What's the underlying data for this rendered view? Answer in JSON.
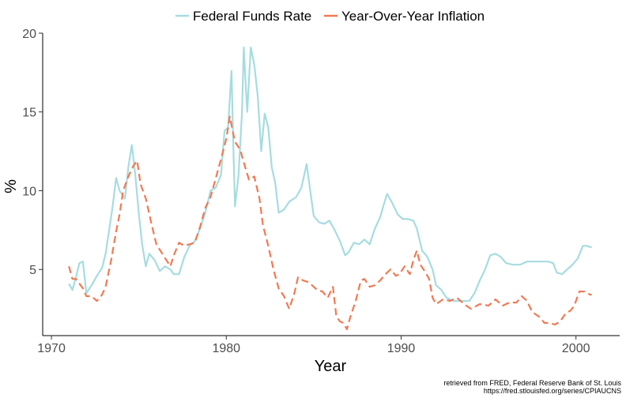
{
  "chart_data": {
    "type": "line",
    "xlabel": "Year",
    "ylabel": "%",
    "xlim": [
      1969.5,
      2002.5
    ],
    "ylim": [
      0.8,
      20.0
    ],
    "xticks": [
      1970,
      1980,
      1990,
      2000
    ],
    "yticks": [
      5,
      10,
      15,
      20
    ],
    "legend_position": "top",
    "grid": false,
    "series": [
      {
        "name": "Federal Funds Rate",
        "color": "#a6dce0",
        "style": "solid",
        "points": [
          [
            1971.0,
            4.1
          ],
          [
            1971.2,
            3.7
          ],
          [
            1971.4,
            4.5
          ],
          [
            1971.6,
            5.4
          ],
          [
            1971.8,
            5.5
          ],
          [
            1972.0,
            3.5
          ],
          [
            1972.3,
            4.0
          ],
          [
            1972.6,
            4.6
          ],
          [
            1972.9,
            5.1
          ],
          [
            1973.1,
            6.0
          ],
          [
            1973.3,
            7.5
          ],
          [
            1973.5,
            9.0
          ],
          [
            1973.7,
            10.8
          ],
          [
            1973.9,
            10.0
          ],
          [
            1974.2,
            9.5
          ],
          [
            1974.4,
            11.5
          ],
          [
            1974.6,
            12.9
          ],
          [
            1974.8,
            11.0
          ],
          [
            1975.0,
            8.5
          ],
          [
            1975.2,
            6.5
          ],
          [
            1975.4,
            5.2
          ],
          [
            1975.6,
            6.0
          ],
          [
            1975.9,
            5.6
          ],
          [
            1976.2,
            4.9
          ],
          [
            1976.5,
            5.2
          ],
          [
            1976.8,
            5.0
          ],
          [
            1977.0,
            4.7
          ],
          [
            1977.3,
            4.7
          ],
          [
            1977.6,
            5.8
          ],
          [
            1977.9,
            6.5
          ],
          [
            1978.2,
            6.8
          ],
          [
            1978.5,
            7.6
          ],
          [
            1978.8,
            8.6
          ],
          [
            1979.1,
            10.0
          ],
          [
            1979.4,
            10.2
          ],
          [
            1979.7,
            11.0
          ],
          [
            1979.9,
            13.8
          ],
          [
            1980.1,
            14.0
          ],
          [
            1980.3,
            17.6
          ],
          [
            1980.4,
            13.0
          ],
          [
            1980.5,
            9.0
          ],
          [
            1980.7,
            11.0
          ],
          [
            1980.9,
            15.0
          ],
          [
            1981.0,
            19.1
          ],
          [
            1981.1,
            17.0
          ],
          [
            1981.2,
            15.0
          ],
          [
            1981.4,
            19.1
          ],
          [
            1981.6,
            18.0
          ],
          [
            1981.8,
            16.0
          ],
          [
            1982.0,
            12.5
          ],
          [
            1982.2,
            14.9
          ],
          [
            1982.4,
            14.0
          ],
          [
            1982.6,
            11.5
          ],
          [
            1982.8,
            10.5
          ],
          [
            1983.0,
            8.6
          ],
          [
            1983.3,
            8.8
          ],
          [
            1983.6,
            9.3
          ],
          [
            1984.0,
            9.6
          ],
          [
            1984.3,
            10.2
          ],
          [
            1984.6,
            11.7
          ],
          [
            1984.8,
            10.0
          ],
          [
            1985.0,
            8.4
          ],
          [
            1985.3,
            8.0
          ],
          [
            1985.6,
            7.9
          ],
          [
            1985.9,
            8.1
          ],
          [
            1986.2,
            7.5
          ],
          [
            1986.5,
            6.8
          ],
          [
            1986.8,
            5.9
          ],
          [
            1987.0,
            6.1
          ],
          [
            1987.3,
            6.7
          ],
          [
            1987.6,
            6.6
          ],
          [
            1987.9,
            6.9
          ],
          [
            1988.2,
            6.6
          ],
          [
            1988.5,
            7.6
          ],
          [
            1988.8,
            8.3
          ],
          [
            1989.0,
            9.1
          ],
          [
            1989.2,
            9.8
          ],
          [
            1989.5,
            9.2
          ],
          [
            1989.8,
            8.5
          ],
          [
            1990.1,
            8.2
          ],
          [
            1990.4,
            8.2
          ],
          [
            1990.7,
            8.1
          ],
          [
            1990.9,
            7.6
          ],
          [
            1991.2,
            6.2
          ],
          [
            1991.5,
            5.8
          ],
          [
            1991.8,
            5.0
          ],
          [
            1992.0,
            4.0
          ],
          [
            1992.3,
            3.7
          ],
          [
            1992.6,
            3.2
          ],
          [
            1993.0,
            3.0
          ],
          [
            1993.5,
            3.0
          ],
          [
            1993.9,
            3.0
          ],
          [
            1994.2,
            3.5
          ],
          [
            1994.5,
            4.3
          ],
          [
            1994.8,
            5.0
          ],
          [
            1995.1,
            5.9
          ],
          [
            1995.4,
            6.0
          ],
          [
            1995.7,
            5.8
          ],
          [
            1996.0,
            5.4
          ],
          [
            1996.4,
            5.3
          ],
          [
            1996.8,
            5.3
          ],
          [
            1997.2,
            5.5
          ],
          [
            1997.6,
            5.5
          ],
          [
            1998.0,
            5.5
          ],
          [
            1998.4,
            5.5
          ],
          [
            1998.7,
            5.4
          ],
          [
            1998.9,
            4.8
          ],
          [
            1999.2,
            4.7
          ],
          [
            1999.5,
            5.0
          ],
          [
            1999.8,
            5.3
          ],
          [
            2000.1,
            5.7
          ],
          [
            2000.4,
            6.5
          ],
          [
            2000.6,
            6.5
          ],
          [
            2000.9,
            6.4
          ]
        ]
      },
      {
        "name": "Year-Over-Year Inflation",
        "color": "#f07a54",
        "style": "dashed",
        "points": [
          [
            1971.0,
            5.2
          ],
          [
            1971.2,
            4.4
          ],
          [
            1971.4,
            4.4
          ],
          [
            1971.6,
            4.1
          ],
          [
            1971.8,
            3.8
          ],
          [
            1972.0,
            3.3
          ],
          [
            1972.3,
            3.3
          ],
          [
            1972.6,
            3.0
          ],
          [
            1972.9,
            3.4
          ],
          [
            1973.1,
            3.9
          ],
          [
            1973.4,
            5.5
          ],
          [
            1973.7,
            7.4
          ],
          [
            1973.9,
            8.5
          ],
          [
            1974.1,
            10.0
          ],
          [
            1974.4,
            10.9
          ],
          [
            1974.7,
            11.6
          ],
          [
            1974.9,
            11.9
          ],
          [
            1975.1,
            10.4
          ],
          [
            1975.4,
            9.5
          ],
          [
            1975.7,
            8.0
          ],
          [
            1976.0,
            6.6
          ],
          [
            1976.4,
            5.9
          ],
          [
            1976.8,
            5.2
          ],
          [
            1977.0,
            5.9
          ],
          [
            1977.3,
            6.7
          ],
          [
            1977.6,
            6.5
          ],
          [
            1977.9,
            6.6
          ],
          [
            1978.2,
            6.7
          ],
          [
            1978.5,
            7.7
          ],
          [
            1978.8,
            8.9
          ],
          [
            1979.1,
            9.6
          ],
          [
            1979.4,
            10.8
          ],
          [
            1979.7,
            12.0
          ],
          [
            1980.0,
            13.3
          ],
          [
            1980.2,
            14.7
          ],
          [
            1980.5,
            13.1
          ],
          [
            1980.8,
            12.6
          ],
          [
            1981.0,
            11.8
          ],
          [
            1981.3,
            10.7
          ],
          [
            1981.6,
            10.9
          ],
          [
            1981.9,
            9.5
          ],
          [
            1982.1,
            7.8
          ],
          [
            1982.4,
            6.5
          ],
          [
            1982.7,
            5.0
          ],
          [
            1983.0,
            3.8
          ],
          [
            1983.3,
            3.3
          ],
          [
            1983.6,
            2.5
          ],
          [
            1983.9,
            3.5
          ],
          [
            1984.1,
            4.5
          ],
          [
            1984.4,
            4.3
          ],
          [
            1984.7,
            4.2
          ],
          [
            1984.9,
            4.0
          ],
          [
            1985.2,
            3.7
          ],
          [
            1985.5,
            3.6
          ],
          [
            1985.8,
            3.2
          ],
          [
            1986.1,
            3.9
          ],
          [
            1986.3,
            2.0
          ],
          [
            1986.5,
            1.7
          ],
          [
            1986.7,
            1.6
          ],
          [
            1986.9,
            1.2
          ],
          [
            1987.1,
            2.0
          ],
          [
            1987.4,
            3.0
          ],
          [
            1987.7,
            4.3
          ],
          [
            1987.9,
            4.4
          ],
          [
            1988.2,
            3.9
          ],
          [
            1988.5,
            4.0
          ],
          [
            1988.8,
            4.3
          ],
          [
            1989.1,
            4.7
          ],
          [
            1989.4,
            5.0
          ],
          [
            1989.7,
            4.6
          ],
          [
            1989.9,
            4.7
          ],
          [
            1990.2,
            5.2
          ],
          [
            1990.5,
            4.7
          ],
          [
            1990.7,
            5.6
          ],
          [
            1990.9,
            6.2
          ],
          [
            1991.1,
            5.3
          ],
          [
            1991.4,
            4.8
          ],
          [
            1991.6,
            4.4
          ],
          [
            1991.8,
            3.2
          ],
          [
            1992.0,
            2.8
          ],
          [
            1992.4,
            3.1
          ],
          [
            1992.8,
            3.0
          ],
          [
            1993.2,
            3.2
          ],
          [
            1993.6,
            2.8
          ],
          [
            1994.0,
            2.5
          ],
          [
            1994.5,
            2.8
          ],
          [
            1995.0,
            2.7
          ],
          [
            1995.4,
            3.1
          ],
          [
            1995.8,
            2.7
          ],
          [
            1996.2,
            2.9
          ],
          [
            1996.6,
            2.9
          ],
          [
            1996.9,
            3.3
          ],
          [
            1997.2,
            3.0
          ],
          [
            1997.5,
            2.3
          ],
          [
            1997.9,
            2.0
          ],
          [
            1998.2,
            1.6
          ],
          [
            1998.5,
            1.6
          ],
          [
            1998.8,
            1.5
          ],
          [
            1999.1,
            1.7
          ],
          [
            1999.4,
            2.2
          ],
          [
            1999.7,
            2.4
          ],
          [
            1999.9,
            2.7
          ],
          [
            2000.2,
            3.6
          ],
          [
            2000.5,
            3.6
          ],
          [
            2000.8,
            3.4
          ],
          [
            2000.9,
            3.4
          ]
        ]
      }
    ]
  },
  "caption_line1": "retrieved from FRED, Federal Reserve Bank of St. Louis",
  "caption_line2": "https://fred.stlouisfed.org/series/CPIAUCNS"
}
